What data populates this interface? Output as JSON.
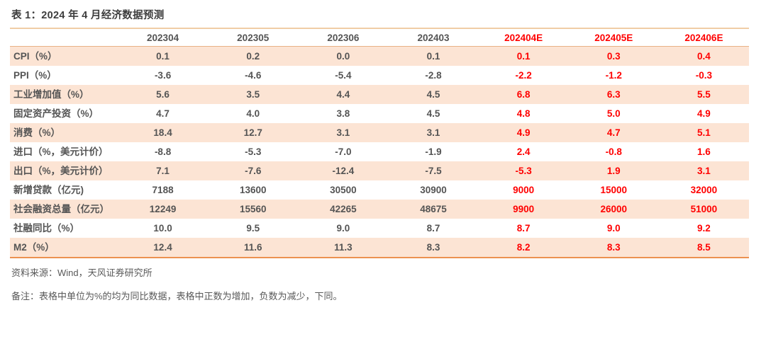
{
  "page": {
    "title": "表 1：2024 年 4 月经济数据预测",
    "source": "资料来源：Wind，天风证券研究所",
    "note": "备注：表格中单位为%的均为同比数据，表格中正数为增加，负数为减少，下同。"
  },
  "colors": {
    "forecast_red": "#ff0000",
    "row_shade": "#fce4d4",
    "body_text": "#545454",
    "top_border": "#f0cda6",
    "header_border": "#e9b186",
    "bottom_border": "#ec9150"
  },
  "chart_data": {
    "type": "table",
    "columns": [
      "202304",
      "202305",
      "202306",
      "202403",
      "202404E",
      "202405E",
      "202406E"
    ],
    "forecast_columns": [
      "202404E",
      "202405E",
      "202406E"
    ],
    "rows": [
      {
        "label": "CPI（%）",
        "values": [
          "0.1",
          "0.2",
          "0.0",
          "0.1",
          "0.1",
          "0.3",
          "0.4"
        ]
      },
      {
        "label": "PPI（%）",
        "values": [
          "-3.6",
          "-4.6",
          "-5.4",
          "-2.8",
          "-2.2",
          "-1.2",
          "-0.3"
        ]
      },
      {
        "label": "工业增加值（%）",
        "values": [
          "5.6",
          "3.5",
          "4.4",
          "4.5",
          "6.8",
          "6.3",
          "5.5"
        ]
      },
      {
        "label": "固定资产投资（%）",
        "values": [
          "4.7",
          "4.0",
          "3.8",
          "4.5",
          "4.8",
          "5.0",
          "4.9"
        ]
      },
      {
        "label": "消费（%）",
        "values": [
          "18.4",
          "12.7",
          "3.1",
          "3.1",
          "4.9",
          "4.7",
          "5.1"
        ]
      },
      {
        "label": "进口（%，美元计价）",
        "values": [
          "-8.8",
          "-5.3",
          "-7.0",
          "-1.9",
          "2.4",
          "-0.8",
          "1.6"
        ]
      },
      {
        "label": "出口（%，美元计价）",
        "values": [
          "7.1",
          "-7.6",
          "-12.4",
          "-7.5",
          "-5.3",
          "1.9",
          "3.1"
        ]
      },
      {
        "label": "新增贷款（亿元)",
        "values": [
          "7188",
          "13600",
          "30500",
          "30900",
          "9000",
          "15000",
          "32000"
        ]
      },
      {
        "label": "社会融资总量（亿元）",
        "values": [
          "12249",
          "15560",
          "42265",
          "48675",
          "9900",
          "26000",
          "51000"
        ]
      },
      {
        "label": "社融同比（%）",
        "values": [
          "10.0",
          "9.5",
          "9.0",
          "8.7",
          "8.7",
          "9.0",
          "9.2"
        ]
      },
      {
        "label": "M2（%）",
        "values": [
          "12.4",
          "11.6",
          "11.3",
          "8.3",
          "8.2",
          "8.3",
          "8.5"
        ]
      }
    ]
  }
}
